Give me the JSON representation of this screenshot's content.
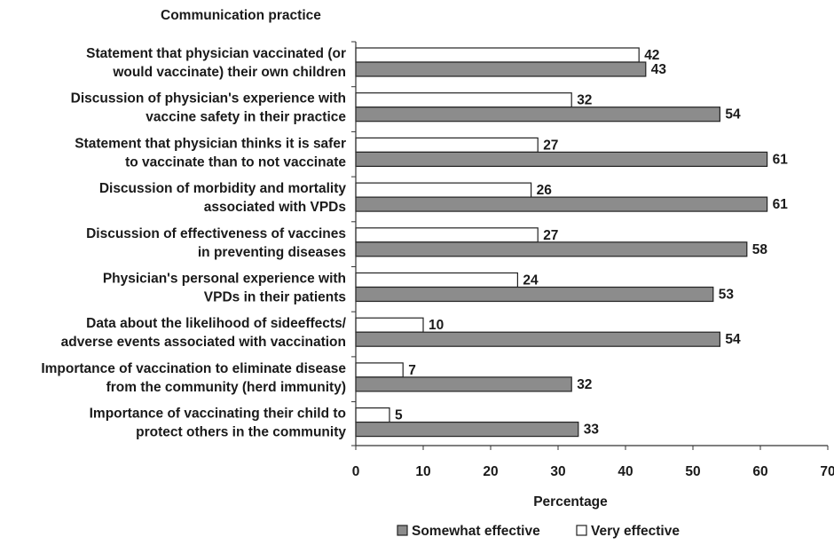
{
  "chart_data": {
    "type": "bar",
    "orientation": "horizontal",
    "title": "Communication practice",
    "xlabel": "Percentage",
    "ylabel": "",
    "xlim": [
      0,
      70
    ],
    "xticks": [
      0,
      10,
      20,
      30,
      40,
      50,
      60,
      70
    ],
    "grid": false,
    "legend_position": "bottom",
    "categories": [
      [
        "Statement that physician vaccinated (or",
        "would vaccinate) their own children"
      ],
      [
        "Discussion of physician's experience with",
        "vaccine safety in their practice"
      ],
      [
        "Statement that physician thinks it is safer",
        "to vaccinate than to not vaccinate"
      ],
      [
        "Discussion of morbidity and mortality",
        "associated with VPDs"
      ],
      [
        "Discussion of effectiveness of vaccines",
        "in preventing diseases"
      ],
      [
        "Physician's personal experience with",
        "VPDs in their patients"
      ],
      [
        "Data about the likelihood of sideeffects/",
        "adverse events associated with vaccination"
      ],
      [
        "Importance of vaccination to eliminate disease",
        "from the community (herd immunity)"
      ],
      [
        "Importance of vaccinating their child to",
        "protect others in the community"
      ]
    ],
    "series": [
      {
        "name": "Very effective",
        "color": "#ffffff",
        "values": [
          42,
          32,
          27,
          26,
          27,
          24,
          10,
          7,
          5
        ]
      },
      {
        "name": "Somewhat effective",
        "color": "#8c8c8c",
        "values": [
          43,
          54,
          61,
          61,
          58,
          53,
          54,
          32,
          33
        ]
      }
    ],
    "legend_order": [
      "Somewhat effective",
      "Very effective"
    ]
  }
}
